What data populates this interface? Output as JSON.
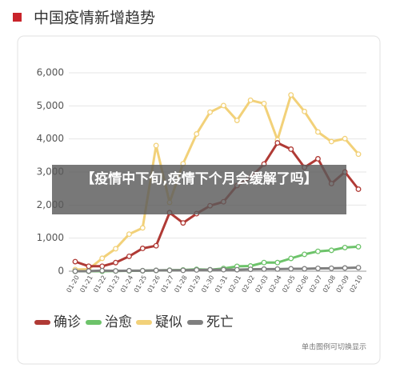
{
  "chart_data": {
    "type": "line",
    "title": "中国疫情新增趋势",
    "x": [
      "01-20",
      "01-21",
      "01-22",
      "01-23",
      "01-24",
      "01-25",
      "01-26",
      "01-27",
      "01-28",
      "01-29",
      "01-30",
      "01-31",
      "02-01",
      "02-02",
      "02-03",
      "02-04",
      "02-05",
      "02-06",
      "02-07",
      "02-08",
      "02-09",
      "02-10"
    ],
    "series": [
      {
        "name": "确诊",
        "color": "#b03a35",
        "values": [
          290,
          150,
          150,
          260,
          450,
          690,
          770,
          1770,
          1460,
          1740,
          1980,
          2100,
          2590,
          2830,
          3240,
          3880,
          3690,
          3140,
          3400,
          2650,
          3000,
          2480
        ]
      },
      {
        "name": "治愈",
        "color": "#6dc36a",
        "values": [
          0,
          0,
          0,
          6,
          12,
          15,
          24,
          30,
          37,
          57,
          43,
          83,
          147,
          157,
          262,
          261,
          387,
          510,
          600,
          632,
          716,
          740
        ]
      },
      {
        "name": "疑似",
        "color": "#f2d179",
        "values": [
          50,
          60,
          390,
          680,
          1120,
          1310,
          3800,
          2080,
          3250,
          4150,
          4810,
          5010,
          4560,
          5170,
          5070,
          3970,
          5330,
          4830,
          4210,
          3920,
          4010,
          3540
        ]
      },
      {
        "name": "死亡",
        "color": "#7f7f7f",
        "values": [
          0,
          3,
          17,
          8,
          16,
          15,
          24,
          26,
          26,
          38,
          43,
          46,
          45,
          57,
          64,
          65,
          73,
          73,
          86,
          89,
          97,
          108
        ]
      }
    ],
    "ylim": [
      0,
      6000
    ],
    "yticks": [
      0,
      {
        "value": 1000,
        "label": "1,000"
      },
      {
        "value": 2000,
        "label": "2,000"
      },
      {
        "value": 3000,
        "label": "3,000"
      },
      {
        "value": 4000,
        "label": "4,000"
      },
      {
        "value": 5000,
        "label": "5,000"
      },
      {
        "value": 6000,
        "label": "6,000"
      }
    ],
    "grid": true,
    "note": "单击图例可切换显示"
  },
  "banner": "【疫情中下旬,疫情下个月会缓解了吗】"
}
